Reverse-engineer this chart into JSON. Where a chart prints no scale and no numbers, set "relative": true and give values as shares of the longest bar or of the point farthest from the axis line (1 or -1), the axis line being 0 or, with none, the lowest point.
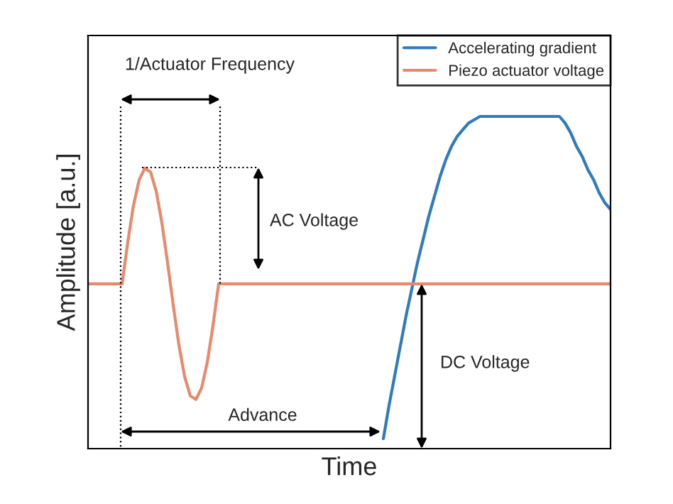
{
  "chart_data": {
    "type": "line",
    "relative": true,
    "xlabel": "Time",
    "ylabel": "Amplitude [a.u.]",
    "legend": "top right",
    "categories": [
      null,
      null,
      null,
      null,
      null,
      null,
      null,
      null,
      null,
      null,
      null,
      null,
      null,
      null,
      null,
      null,
      null,
      null,
      null,
      null,
      null,
      null,
      null,
      null,
      null,
      null,
      null,
      null,
      null,
      null,
      null,
      null,
      null,
      null,
      null,
      null,
      null,
      null,
      null,
      null,
      null,
      null,
      null,
      null,
      null,
      null,
      null,
      null,
      null,
      null,
      null,
      null,
      null,
      null,
      null,
      null,
      null,
      null,
      null,
      null,
      null,
      null,
      null,
      null,
      null,
      null,
      null,
      null,
      null,
      null,
      null,
      null,
      null,
      null,
      null,
      null,
      null,
      null,
      null,
      null,
      null,
      null,
      null,
      null,
      null,
      null,
      null,
      null,
      null,
      null,
      null,
      null,
      null
    ],
    "series": [
      {
        "name": "Accelerating gradient",
        "color": "#2f7bbf",
        "values": [
          null,
          null,
          null,
          null,
          null,
          null,
          null,
          null,
          null,
          null,
          null,
          null,
          null,
          null,
          null,
          null,
          null,
          null,
          null,
          null,
          null,
          null,
          null,
          null,
          null,
          null,
          null,
          null,
          null,
          null,
          null,
          null,
          null,
          null,
          null,
          null,
          null,
          null,
          null,
          null,
          null,
          null,
          null,
          null,
          null,
          null,
          null,
          null,
          null,
          null,
          null,
          null,
          0.03,
          0.13,
          0.22,
          0.31,
          0.4,
          0.48,
          0.56,
          0.63,
          0.7,
          0.76,
          0.82,
          0.87,
          0.91,
          0.94,
          0.96,
          0.98,
          0.99,
          1.0,
          1.0,
          1.0,
          1.0,
          1.0,
          1.0,
          1.0,
          1.0,
          1.0,
          1.0,
          1.0,
          1.0,
          1.0,
          1.0,
          1.0,
          0.98,
          0.95,
          0.91,
          0.88,
          0.84,
          0.81,
          0.77,
          0.74,
          0.72
        ]
      },
      {
        "name": "Piezo actuator voltage",
        "color": "#e8896c",
        "values": [
          0.496,
          0.496,
          0.496,
          0.496,
          0.496,
          0.496,
          0.496,
          0.622,
          0.732,
          0.809,
          0.844,
          0.833,
          0.775,
          0.68,
          0.56,
          0.432,
          0.312,
          0.217,
          0.159,
          0.148,
          0.183,
          0.26,
          0.37,
          0.496,
          0.496,
          0.496,
          0.496,
          0.496,
          0.496,
          0.496,
          0.496,
          0.496,
          0.496,
          0.496,
          0.496,
          0.496,
          0.496,
          0.496,
          0.496,
          0.496,
          0.496,
          0.496,
          0.496,
          0.496,
          0.496,
          0.496,
          0.496,
          0.496,
          0.496,
          0.496,
          0.496,
          0.496,
          0.496,
          0.496,
          0.496,
          0.496,
          0.496,
          0.496,
          0.496,
          0.496,
          0.496,
          0.496,
          0.496,
          0.496,
          0.496,
          0.496,
          0.496,
          0.496,
          0.496,
          0.496,
          0.496,
          0.496,
          0.496,
          0.496,
          0.496,
          0.496,
          0.496,
          0.496,
          0.496,
          0.496,
          0.496,
          0.496,
          0.496,
          0.496,
          0.496,
          0.496,
          0.496,
          0.496,
          0.496,
          0.496,
          0.496,
          0.496,
          0.496
        ]
      }
    ],
    "annotations": [
      "1/Actuator Frequency",
      "AC Voltage",
      "DC Voltage",
      "Advance"
    ]
  }
}
